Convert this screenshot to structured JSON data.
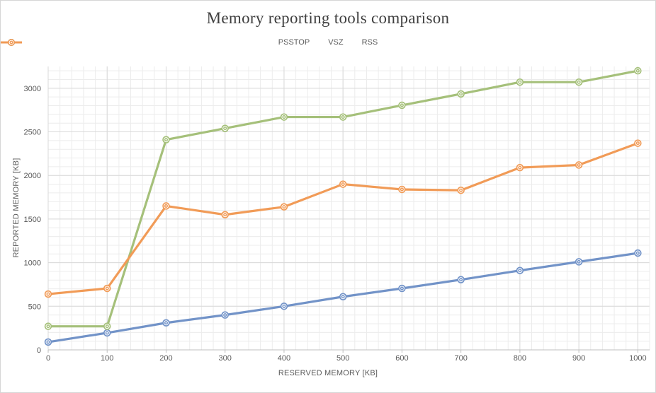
{
  "window": {
    "background": "#ffffff",
    "border_color": "#d6d6d6"
  },
  "chart_data": {
    "type": "line",
    "title": "Memory reporting tools comparison",
    "xlabel": "RESERVED MEMORY [KB]",
    "ylabel": "REPORTED MEMORY [KB]",
    "x": [
      0,
      100,
      200,
      300,
      400,
      500,
      600,
      700,
      800,
      900,
      1000
    ],
    "series": [
      {
        "name": "PSSTOP",
        "color": "#7293c8",
        "values": [
          90,
          195,
          310,
          400,
          500,
          610,
          705,
          805,
          910,
          1010,
          1110
        ]
      },
      {
        "name": "VSZ",
        "color": "#a5c07a",
        "values": [
          270,
          270,
          2410,
          2540,
          2670,
          2670,
          2805,
          2935,
          3070,
          3070,
          3200
        ]
      },
      {
        "name": "RSS",
        "color": "#f19b57",
        "values": [
          640,
          705,
          1650,
          1550,
          1640,
          1900,
          1840,
          1830,
          2090,
          2120,
          2370
        ]
      }
    ],
    "x_ticks": [
      0,
      100,
      200,
      300,
      400,
      500,
      600,
      700,
      800,
      900,
      1000
    ],
    "y_ticks": [
      0,
      500,
      1000,
      1500,
      2000,
      2500,
      3000
    ],
    "x_minor_step": 20,
    "y_minor_step": 100,
    "xlim": [
      0,
      1020
    ],
    "ylim": [
      0,
      3250
    ],
    "grid": true,
    "legend_position": "top",
    "marker": "double-circle",
    "colors": {
      "grid_minor": "#ececec",
      "grid_major": "#d9d9d9",
      "axis_line": "#bfbfbf",
      "tick_text": "#595959",
      "title_text": "#3f3f3f"
    }
  }
}
